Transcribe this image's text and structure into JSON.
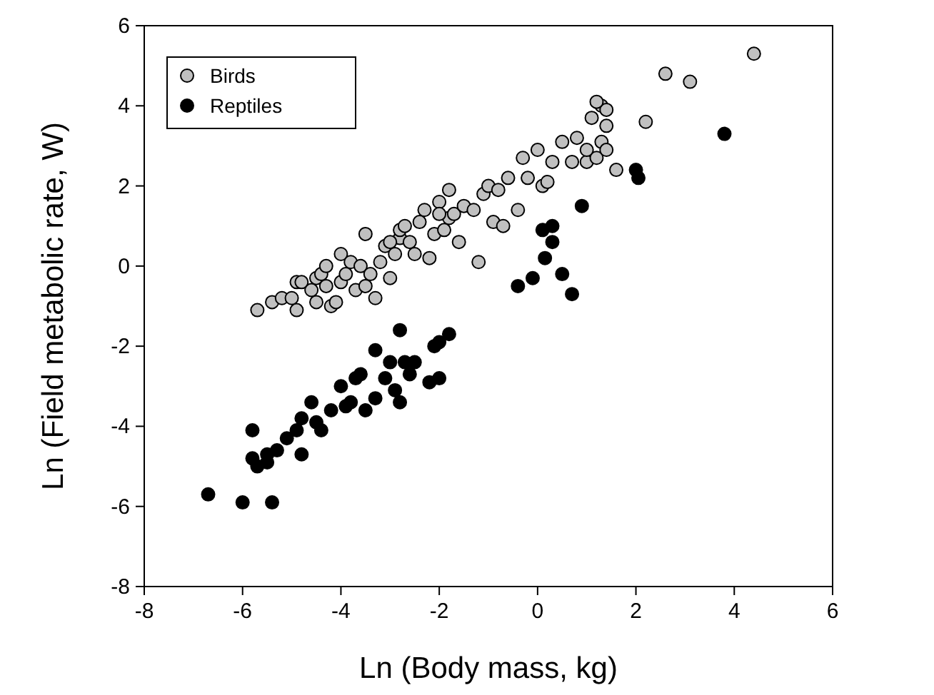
{
  "chart_data": {
    "type": "scatter",
    "xlabel": "Ln (Body mass, kg)",
    "ylabel": "Ln (Field metabolic rate, W)",
    "xlim": [
      -8,
      6
    ],
    "ylim": [
      -8,
      6
    ],
    "xticks": [
      -8,
      -6,
      -4,
      -2,
      0,
      2,
      4,
      6
    ],
    "yticks": [
      -8,
      -6,
      -4,
      -2,
      0,
      2,
      4,
      6
    ],
    "legend": "top left",
    "marker": "circle",
    "grid": false,
    "series": [
      {
        "name": "Birds",
        "color": "#c0c0c0",
        "x": [
          -5.7,
          -5.4,
          -5.2,
          -4.9,
          -4.9,
          -4.8,
          -4.6,
          -4.5,
          -4.5,
          -4.4,
          -4.3,
          -4.2,
          -4.1,
          -4.0,
          -4.0,
          -3.9,
          -3.8,
          -3.7,
          -3.6,
          -3.5,
          -3.5,
          -3.4,
          -3.3,
          -3.2,
          -3.1,
          -3.0,
          -2.9,
          -2.8,
          -2.8,
          -2.7,
          -2.6,
          -2.5,
          -2.4,
          -2.3,
          -2.2,
          -2.1,
          -2.0,
          -1.9,
          -1.8,
          -1.8,
          -1.7,
          -1.6,
          -1.5,
          -1.3,
          -1.2,
          -1.1,
          -1.0,
          -0.9,
          -0.8,
          -0.7,
          -0.6,
          -0.4,
          -0.3,
          -0.2,
          0.0,
          0.1,
          0.2,
          0.3,
          0.5,
          0.7,
          0.8,
          1.0,
          1.1,
          1.2,
          1.3,
          1.3,
          1.4,
          1.4,
          1.4,
          1.6,
          2.2,
          2.6,
          3.1,
          4.4,
          1.2,
          1.0,
          -5.0,
          -4.3,
          -3.0,
          -2.0
        ],
        "values": [
          -1.1,
          -0.9,
          -0.8,
          -1.1,
          -0.4,
          -0.4,
          -0.6,
          -0.3,
          -0.9,
          -0.2,
          -0.5,
          -1.0,
          -0.9,
          0.3,
          -0.4,
          -0.2,
          0.1,
          -0.6,
          0.0,
          -0.5,
          0.8,
          -0.2,
          -0.8,
          0.1,
          0.5,
          -0.3,
          0.3,
          0.7,
          0.9,
          1.0,
          0.6,
          0.3,
          1.1,
          1.4,
          0.2,
          0.8,
          1.6,
          0.9,
          1.2,
          1.9,
          1.3,
          0.6,
          1.5,
          1.4,
          0.1,
          1.8,
          2.0,
          1.1,
          1.9,
          1.0,
          2.2,
          1.4,
          2.7,
          2.2,
          2.9,
          2.0,
          2.1,
          2.6,
          3.1,
          2.6,
          3.2,
          2.6,
          3.7,
          2.7,
          3.1,
          4.0,
          3.5,
          2.9,
          3.9,
          2.4,
          3.6,
          4.8,
          4.6,
          5.3,
          4.1,
          2.9,
          -0.8,
          0.0,
          0.6,
          1.3
        ]
      },
      {
        "name": "Reptiles",
        "color": "#000000",
        "x": [
          -6.7,
          -6.0,
          -5.4,
          -5.8,
          -5.8,
          -5.7,
          -5.5,
          -5.5,
          -5.3,
          -5.1,
          -4.9,
          -4.8,
          -4.8,
          -4.6,
          -4.5,
          -4.4,
          -4.2,
          -4.0,
          -3.9,
          -3.8,
          -3.7,
          -3.6,
          -3.5,
          -3.3,
          -3.3,
          -3.1,
          -3.0,
          -2.9,
          -2.8,
          -2.8,
          -2.7,
          -2.6,
          -2.5,
          -2.2,
          -2.1,
          -2.0,
          -2.0,
          -1.8,
          -0.4,
          -0.1,
          0.1,
          0.15,
          0.3,
          0.3,
          0.5,
          0.7,
          0.9,
          2.0,
          2.05,
          3.8
        ],
        "values": [
          -5.7,
          -5.9,
          -5.9,
          -4.1,
          -4.8,
          -5.0,
          -4.7,
          -4.9,
          -4.6,
          -4.3,
          -4.1,
          -3.8,
          -4.7,
          -3.4,
          -3.9,
          -4.1,
          -3.6,
          -3.0,
          -3.5,
          -3.4,
          -2.8,
          -2.7,
          -3.6,
          -3.3,
          -2.1,
          -2.8,
          -2.4,
          -3.1,
          -1.6,
          -3.4,
          -2.4,
          -2.7,
          -2.4,
          -2.9,
          -2.0,
          -1.9,
          -2.8,
          -1.7,
          -0.5,
          -0.3,
          0.9,
          0.2,
          1.0,
          0.6,
          -0.2,
          -0.7,
          1.5,
          2.4,
          2.2,
          3.3
        ]
      }
    ]
  }
}
